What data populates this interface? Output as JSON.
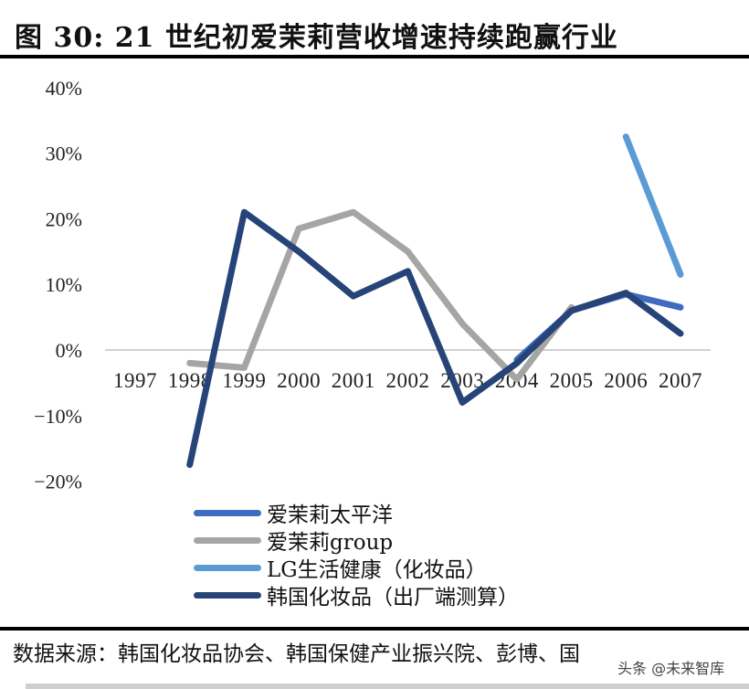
{
  "figure": {
    "title": "图  30:  21 世纪初爱茉莉营收增速持续跑赢行业",
    "source": "数据来源：韩国化妆品协会、韩国保健产业振兴院、彭博、国",
    "watermark": "头条 @未来智库"
  },
  "legend": [
    {
      "label": "爱茉莉太平洋",
      "color": "#3f6cc0"
    },
    {
      "label": "爱茉莉group",
      "color": "#a5a5a5"
    },
    {
      "label": "LG生活健康（化妆品）",
      "color": "#5b9bd5"
    },
    {
      "label": "韩国化妆品（出厂端测算）",
      "color": "#264478"
    }
  ],
  "chart_data": {
    "type": "line",
    "title": "21 世纪初爱茉莉营收增速持续跑赢行业",
    "xlabel": "",
    "ylabel": "",
    "ylim": [
      -0.2,
      0.4
    ],
    "yticks": [
      "-20%",
      "-10%",
      "0%",
      "10%",
      "20%",
      "30%",
      "40%"
    ],
    "grid": false,
    "legend_position": "bottom-left",
    "categories": [
      "1997",
      "1998",
      "1999",
      "2000",
      "2001",
      "2002",
      "2003",
      "2004",
      "2005",
      "2006",
      "2007"
    ],
    "series": [
      {
        "name": "爱茉莉太平洋",
        "color": "#3f6cc0",
        "values": [
          null,
          null,
          null,
          null,
          null,
          null,
          null,
          -0.015,
          0.06,
          0.085,
          0.065
        ]
      },
      {
        "name": "爱茉莉group",
        "color": "#a5a5a5",
        "values": [
          null,
          -0.02,
          -0.027,
          0.185,
          0.21,
          0.15,
          0.04,
          -0.045,
          0.065,
          null,
          null
        ]
      },
      {
        "name": "LG生活健康（化妆品）",
        "color": "#5b9bd5",
        "values": [
          null,
          null,
          null,
          null,
          null,
          null,
          null,
          null,
          null,
          0.325,
          0.115
        ]
      },
      {
        "name": "韩国化妆品（出厂端测算）",
        "color": "#264478",
        "values": [
          null,
          -0.175,
          0.21,
          0.15,
          0.082,
          0.12,
          -0.08,
          -0.02,
          0.06,
          0.087,
          0.025
        ]
      }
    ]
  }
}
